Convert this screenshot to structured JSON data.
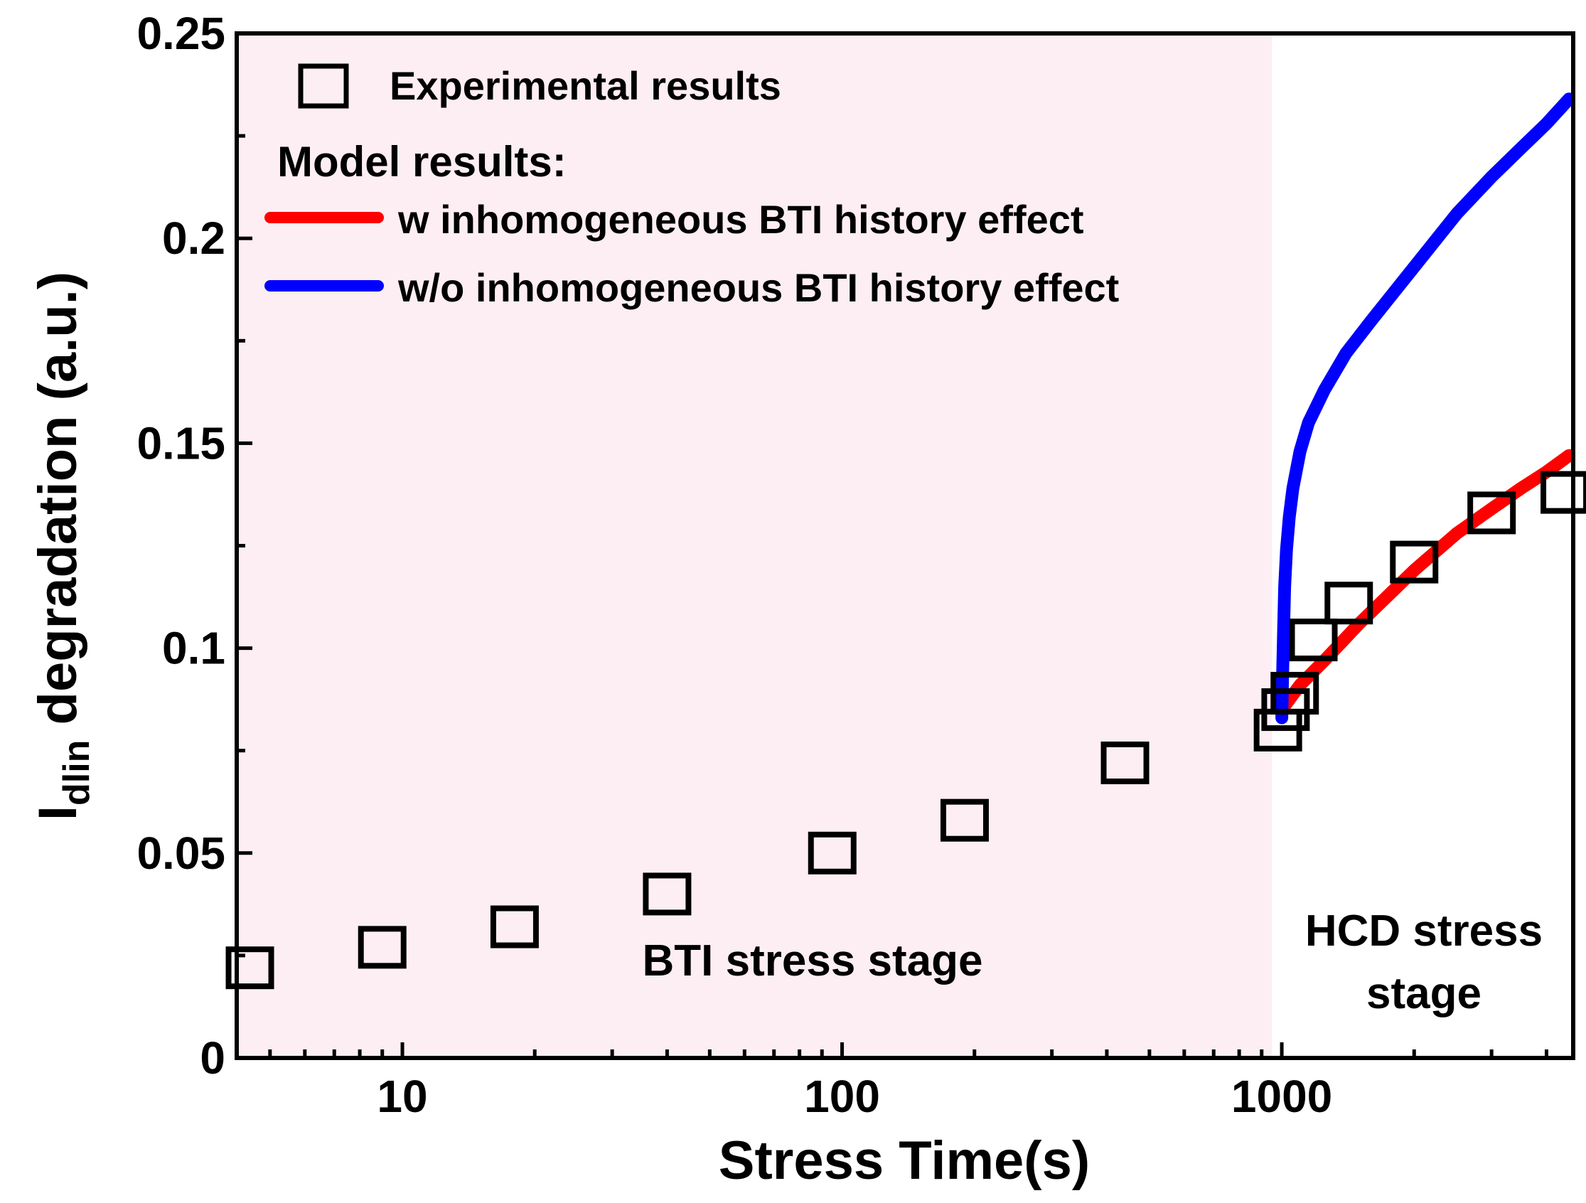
{
  "chart_data": {
    "type": "scatter",
    "x_scale": "log",
    "xlim": [
      4.2,
      4600
    ],
    "ylim": [
      0,
      0.25
    ],
    "xlabel": "Stress Time(s)",
    "ylabel_main": "I",
    "ylabel_sub": "dlin",
    "ylabel_rest": " degradation (a.u.)",
    "x_ticks": [
      10,
      100,
      1000
    ],
    "x_tick_labels": [
      "10",
      "100",
      "1000"
    ],
    "y_ticks": [
      0,
      0.05,
      0.1,
      0.15,
      0.2,
      0.25
    ],
    "y_tick_labels": [
      "0",
      "0.05",
      "0.1",
      "0.15",
      "0.2",
      "0.25"
    ],
    "grid": false,
    "legend_position": "top-left",
    "bti_region": {
      "x_end": 950,
      "color": "#fdeef3"
    },
    "annotations": {
      "bti": "BTI stress stage",
      "hcd_line1": "HCD stress",
      "hcd_line2": "stage"
    },
    "series": [
      {
        "name": "Experimental results",
        "kind": "marker",
        "marker": "open-square",
        "color": "#000000",
        "x": [
          4.5,
          9,
          18,
          40,
          95,
          190,
          440,
          980,
          1020,
          1070,
          1180,
          1420,
          2000,
          3000,
          4400
        ],
        "y": [
          0.022,
          0.027,
          0.032,
          0.04,
          0.05,
          0.058,
          0.072,
          0.08,
          0.085,
          0.089,
          0.102,
          0.111,
          0.121,
          0.133,
          0.138
        ]
      },
      {
        "name": "w inhomogeneous BTI history effect",
        "kind": "line",
        "color": "#ff0000",
        "x": [
          1000,
          1100,
          1250,
          1500,
          2000,
          2500,
          3000,
          3500,
          4000,
          4500
        ],
        "y": [
          0.085,
          0.091,
          0.097,
          0.106,
          0.119,
          0.128,
          0.134,
          0.139,
          0.143,
          0.147
        ]
      },
      {
        "name": "w/o inhomogeneous BTI history effect",
        "kind": "line",
        "color": "#0000ff",
        "x": [
          1000,
          1005,
          1010,
          1015,
          1025,
          1040,
          1060,
          1100,
          1150,
          1250,
          1400,
          1600,
          2000,
          2500,
          3000,
          3500,
          4000,
          4500
        ],
        "y": [
          0.083,
          0.095,
          0.105,
          0.115,
          0.124,
          0.132,
          0.139,
          0.148,
          0.155,
          0.163,
          0.172,
          0.18,
          0.193,
          0.206,
          0.215,
          0.222,
          0.228,
          0.234
        ]
      }
    ]
  },
  "legend": {
    "experimental": "Experimental results",
    "model_header": "Model results:",
    "with": "w inhomogeneous BTI history effect",
    "without": "w/o inhomogeneous BTI history effect"
  }
}
